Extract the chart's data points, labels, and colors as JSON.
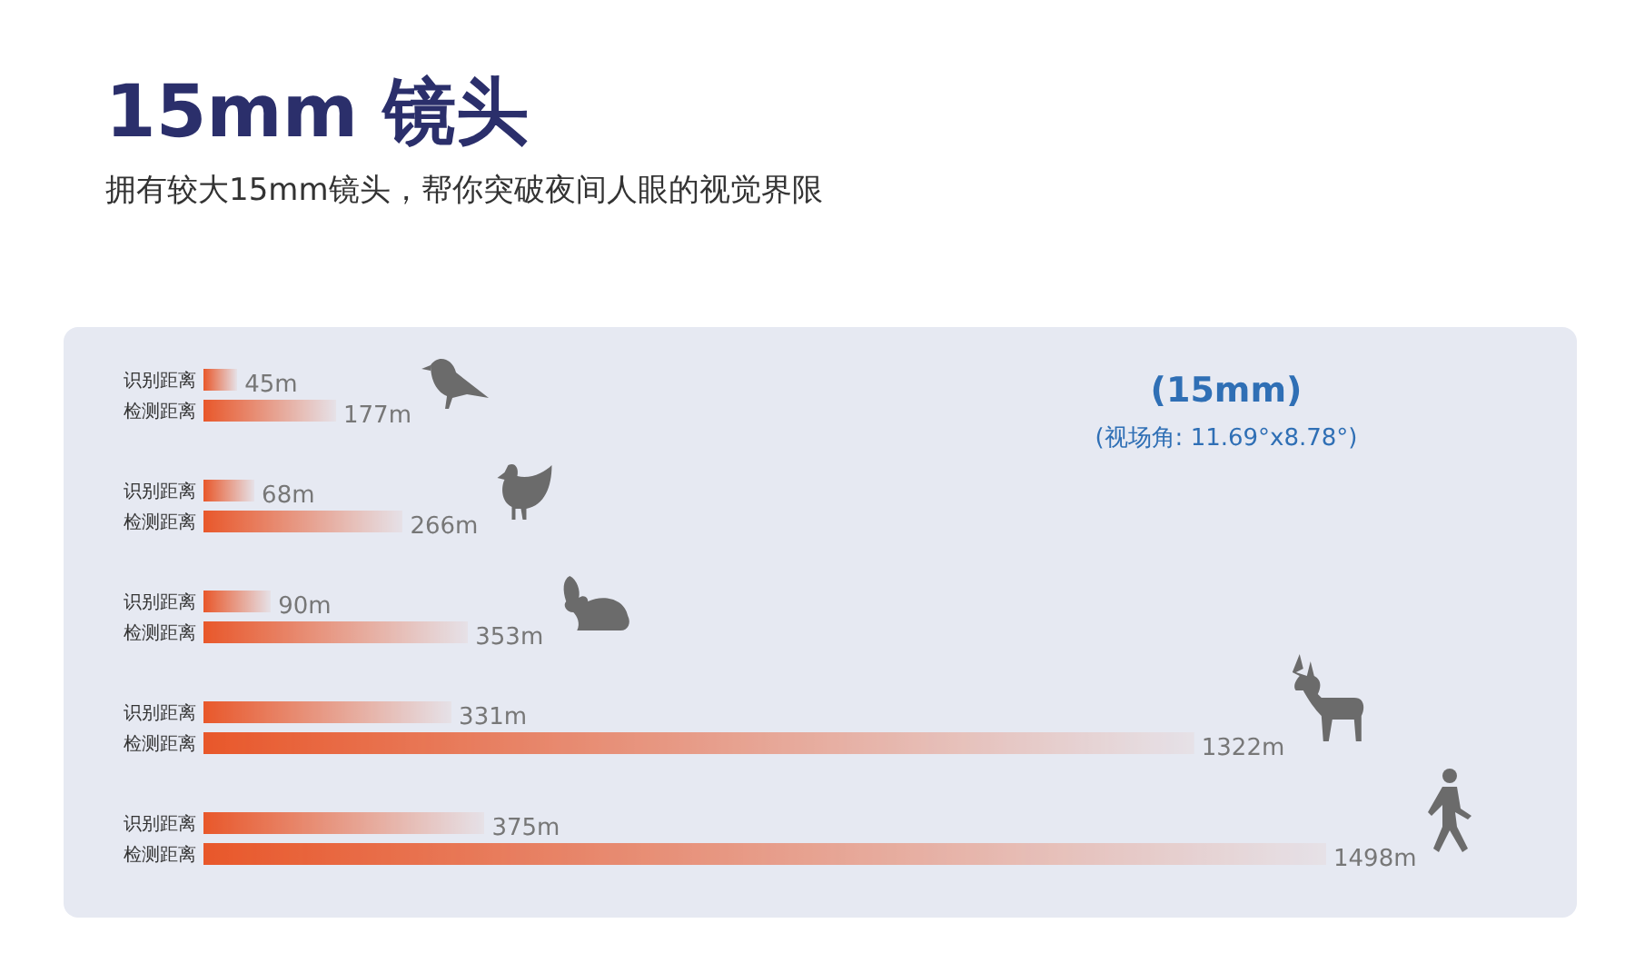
{
  "chart_data": {
    "type": "bar",
    "orientation": "horizontal",
    "title": "15mm 镜头",
    "subtitle": "拥有较大15mm镜头，帮你突破夜间人眼的视觉界限",
    "categories": [
      null,
      null,
      null,
      null,
      null
    ],
    "series": [
      {
        "name": "识别距离",
        "color": "#e8572a",
        "values": [
          45,
          68,
          90,
          331,
          375
        ],
        "value_labels": [
          "45m",
          "68m",
          "90m",
          "331m",
          "375m"
        ]
      },
      {
        "name": "检测距离",
        "color": "#e8572a",
        "values": [
          177,
          266,
          353,
          1322,
          1498
        ],
        "value_labels": [
          "177m",
          "266m",
          "353m",
          "1322m",
          "1498m"
        ]
      }
    ],
    "annotations": [
      "(15mm)",
      "(视场角: 11.69°x8.78°)"
    ],
    "legend": "left"
  }
}
